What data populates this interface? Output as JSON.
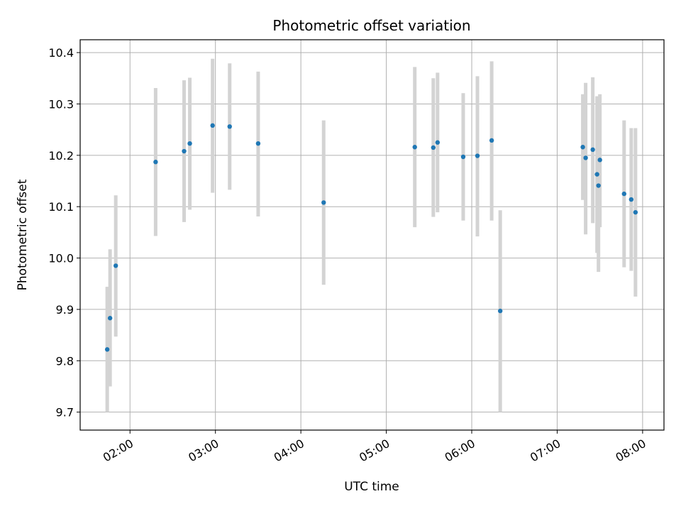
{
  "chart_data": {
    "type": "scatter",
    "title": "Photometric offset variation",
    "xlabel": "UTC time",
    "ylabel": "Photometric offset",
    "xlim": [
      "01:25",
      "08:15"
    ],
    "ylim": [
      9.665,
      10.425
    ],
    "x_ticks": [
      "02:00",
      "03:00",
      "04:00",
      "05:00",
      "06:00",
      "07:00",
      "08:00"
    ],
    "y_ticks": [
      "9.7",
      "9.8",
      "9.9",
      "10.0",
      "10.1",
      "10.2",
      "10.3",
      "10.4"
    ],
    "grid": true,
    "marker_color": "#1f77b4",
    "errorbar_color": "#d3d3d3",
    "points": [
      {
        "t": "01:44",
        "y": 9.822,
        "ylo": 9.7,
        "yhi": 9.944
      },
      {
        "t": "01:46",
        "y": 9.883,
        "ylo": 9.75,
        "yhi": 10.017
      },
      {
        "t": "01:50",
        "y": 9.985,
        "ylo": 9.847,
        "yhi": 10.122
      },
      {
        "t": "02:18",
        "y": 10.187,
        "ylo": 10.043,
        "yhi": 10.331
      },
      {
        "t": "02:38",
        "y": 10.208,
        "ylo": 10.07,
        "yhi": 10.346
      },
      {
        "t": "02:42",
        "y": 10.223,
        "ylo": 10.094,
        "yhi": 10.351
      },
      {
        "t": "02:58",
        "y": 10.258,
        "ylo": 10.127,
        "yhi": 10.388
      },
      {
        "t": "03:10",
        "y": 10.256,
        "ylo": 10.133,
        "yhi": 10.379
      },
      {
        "t": "03:30",
        "y": 10.223,
        "ylo": 10.081,
        "yhi": 10.363
      },
      {
        "t": "04:16",
        "y": 10.108,
        "ylo": 9.948,
        "yhi": 10.268
      },
      {
        "t": "05:20",
        "y": 10.216,
        "ylo": 10.06,
        "yhi": 10.372
      },
      {
        "t": "05:33",
        "y": 10.215,
        "ylo": 10.08,
        "yhi": 10.35
      },
      {
        "t": "05:36",
        "y": 10.225,
        "ylo": 10.089,
        "yhi": 10.361
      },
      {
        "t": "05:54",
        "y": 10.197,
        "ylo": 10.073,
        "yhi": 10.321
      },
      {
        "t": "06:04",
        "y": 10.199,
        "ylo": 10.042,
        "yhi": 10.354
      },
      {
        "t": "06:14",
        "y": 10.229,
        "ylo": 10.073,
        "yhi": 10.383
      },
      {
        "t": "06:20",
        "y": 9.897,
        "ylo": 9.7,
        "yhi": 10.093
      },
      {
        "t": "07:18",
        "y": 10.216,
        "ylo": 10.113,
        "yhi": 10.319
      },
      {
        "t": "07:20",
        "y": 10.195,
        "ylo": 10.046,
        "yhi": 10.341
      },
      {
        "t": "07:25",
        "y": 10.211,
        "ylo": 10.068,
        "yhi": 10.352
      },
      {
        "t": "07:28",
        "y": 10.163,
        "ylo": 10.01,
        "yhi": 10.315
      },
      {
        "t": "07:29",
        "y": 10.141,
        "ylo": 9.973,
        "yhi": 10.31
      },
      {
        "t": "07:30",
        "y": 10.191,
        "ylo": 10.06,
        "yhi": 10.319
      },
      {
        "t": "07:47",
        "y": 10.125,
        "ylo": 9.982,
        "yhi": 10.268
      },
      {
        "t": "07:52",
        "y": 10.114,
        "ylo": 9.975,
        "yhi": 10.253
      },
      {
        "t": "07:55",
        "y": 10.089,
        "ylo": 9.925,
        "yhi": 10.253
      }
    ]
  }
}
